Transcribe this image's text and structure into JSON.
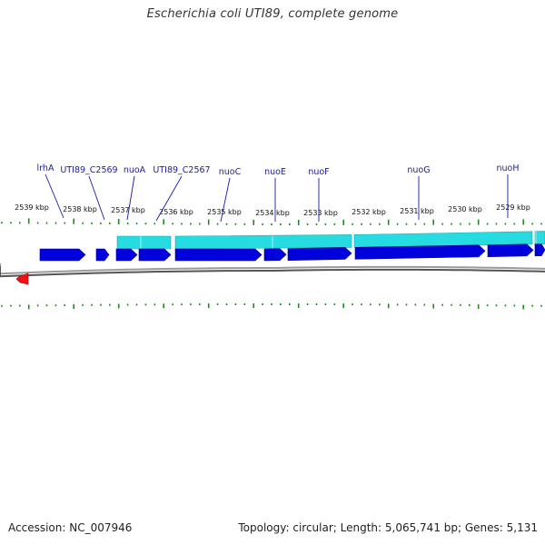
{
  "title": "Escherichia coli UTI89, complete genome",
  "footer": {
    "accession": "Accession: NC_007946",
    "summary": "Topology: circular; Length: 5,065,741 bp; Genes: 5,131"
  },
  "colors": {
    "forward_gene": "#0000dd",
    "operon_band": "#27dce0",
    "tick": "#1f8a1f",
    "reverse_gene": "#ee1111",
    "backbone": "#7a7a7a",
    "gene_label": "#1a1aa8"
  },
  "kbp_ticks": [
    {
      "label": "2539 kbp"
    },
    {
      "label": "2538 kbp"
    },
    {
      "label": "2537 kbp"
    },
    {
      "label": "2536 kbp"
    },
    {
      "label": "2535 kbp"
    },
    {
      "label": "2534 kbp"
    },
    {
      "label": "2533 kbp"
    },
    {
      "label": "2532 kbp"
    },
    {
      "label": "2531 kbp"
    },
    {
      "label": "2530 kbp"
    },
    {
      "label": "2529 kbp"
    }
  ],
  "gene_labels": [
    {
      "name": "lrhA"
    },
    {
      "name": "UTI89_C2569"
    },
    {
      "name": "nuoA"
    },
    {
      "name": "UTI89_C2567"
    },
    {
      "name": "nuoC"
    },
    {
      "name": "nuoE"
    },
    {
      "name": "nuoF"
    },
    {
      "name": "nuoG"
    },
    {
      "name": "nuoH"
    }
  ]
}
